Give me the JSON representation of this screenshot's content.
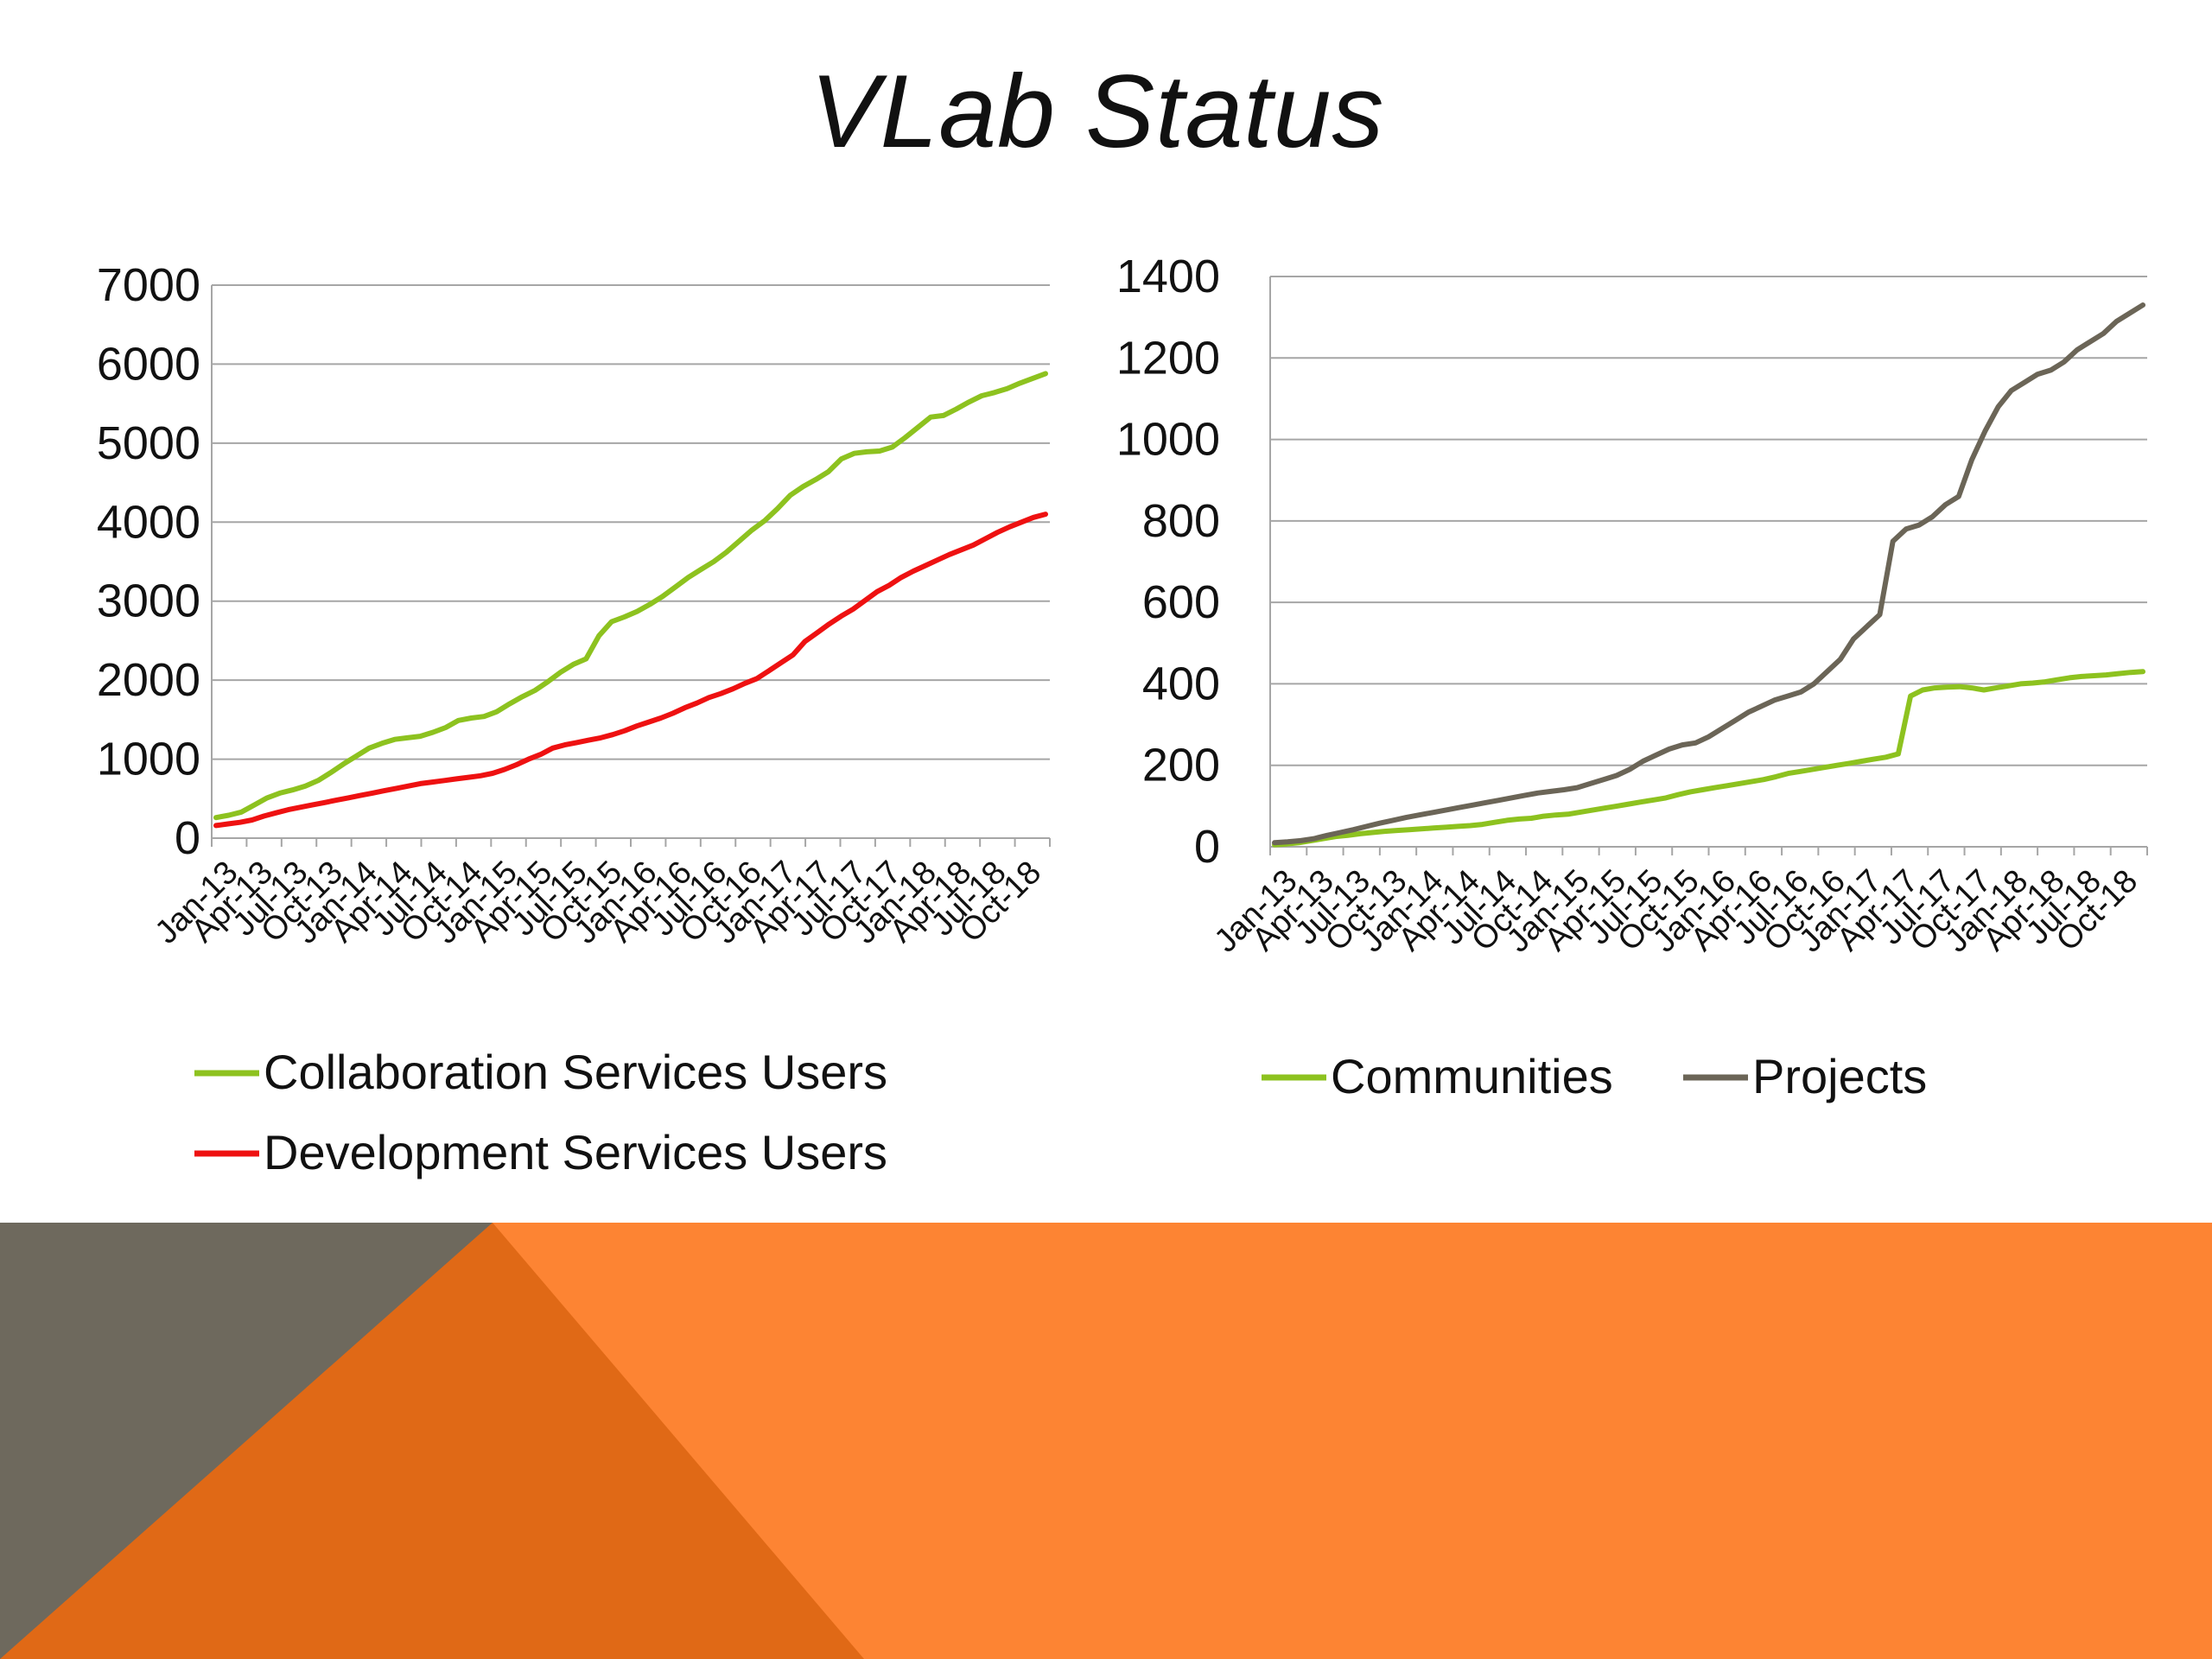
{
  "slide": {
    "title": "VLab Status"
  },
  "colors": {
    "collab_green": "#8dc21f",
    "dev_red": "#ee1111",
    "projects_gray": "#6b6557",
    "gridline": "#a6a6a6",
    "footer_orange": "#fd8433",
    "footer_dark_orange": "#e06916",
    "footer_gray": "#6e695d"
  },
  "chart_data": [
    {
      "type": "line",
      "x_tick_labels": [
        "Jan-13",
        "Apr-13",
        "Jul-13",
        "Oct-13",
        "Jan-14",
        "Apr-14",
        "Jul-14",
        "Oct-14",
        "Jan-15",
        "Apr-15",
        "Jul-15",
        "Oct-15",
        "Jan-16",
        "Apr-16",
        "Jul-16",
        "Oct-16",
        "Jan-17",
        "Apr-17",
        "Jul-17",
        "Oct-17",
        "Jan-18",
        "Apr-18",
        "Jul-18",
        "Oct-18"
      ],
      "ylim": [
        0,
        7000
      ],
      "y_ticks": [
        0,
        1000,
        2000,
        3000,
        4000,
        5000,
        6000,
        7000
      ],
      "grid": true,
      "legend_position": "bottom",
      "series": [
        {
          "name": "Collaboration Services Users",
          "color": "#8dc21f",
          "values": [
            260,
            290,
            330,
            420,
            510,
            570,
            610,
            660,
            730,
            830,
            940,
            1040,
            1140,
            1200,
            1250,
            1270,
            1290,
            1340,
            1400,
            1490,
            1520,
            1540,
            1600,
            1700,
            1790,
            1870,
            1980,
            2100,
            2200,
            2270,
            2560,
            2740,
            2800,
            2870,
            2960,
            3060,
            3180,
            3300,
            3400,
            3500,
            3620,
            3760,
            3900,
            4020,
            4170,
            4340,
            4450,
            4540,
            4640,
            4800,
            4870,
            4890,
            4900,
            4950,
            5070,
            5200,
            5330,
            5350,
            5430,
            5520,
            5600,
            5640,
            5690,
            5760,
            5820,
            5880
          ]
        },
        {
          "name": "Development Services Users",
          "color": "#ee1111",
          "values": [
            160,
            180,
            200,
            230,
            280,
            320,
            360,
            390,
            420,
            450,
            480,
            510,
            540,
            570,
            600,
            630,
            660,
            690,
            710,
            730,
            750,
            770,
            790,
            820,
            870,
            930,
            1000,
            1060,
            1140,
            1180,
            1210,
            1240,
            1270,
            1310,
            1360,
            1420,
            1470,
            1520,
            1580,
            1650,
            1710,
            1780,
            1830,
            1890,
            1960,
            2020,
            2120,
            2220,
            2320,
            2490,
            2600,
            2710,
            2810,
            2900,
            3010,
            3120,
            3200,
            3300,
            3380,
            3450,
            3520,
            3590,
            3650,
            3710,
            3790,
            3870,
            3940,
            4000,
            4060,
            4100
          ]
        }
      ]
    },
    {
      "type": "line",
      "x_tick_labels": [
        "Jan-13",
        "Apr-13",
        "Jul-13",
        "Oct-13",
        "Jan-14",
        "Apr-14",
        "Jul-14",
        "Oct-14",
        "Jan-15",
        "Apr-15",
        "Jul-15",
        "Oct-15",
        "Jan-16",
        "Apr-16",
        "Jul-16",
        "Oct-16",
        "Jan-17",
        "Apr-17",
        "Jul-17",
        "Oct-17",
        "Jan-18",
        "Apr-18",
        "Jul-18",
        "Oct-18"
      ],
      "ylim": [
        0,
        1400
      ],
      "y_ticks": [
        0,
        200,
        400,
        600,
        800,
        1000,
        1200,
        1400
      ],
      "grid": true,
      "legend_position": "bottom",
      "series": [
        {
          "name": "Communities",
          "color": "#8dc21f",
          "values": [
            5,
            7,
            10,
            15,
            20,
            25,
            28,
            32,
            35,
            38,
            40,
            42,
            44,
            46,
            48,
            50,
            52,
            55,
            60,
            65,
            68,
            70,
            75,
            78,
            80,
            85,
            90,
            95,
            100,
            105,
            110,
            115,
            120,
            128,
            135,
            140,
            145,
            150,
            155,
            160,
            165,
            172,
            180,
            185,
            190,
            195,
            200,
            205,
            210,
            215,
            220,
            228,
            370,
            385,
            390,
            392,
            393,
            390,
            385,
            390,
            395,
            400,
            402,
            405,
            410,
            415,
            418,
            420,
            422,
            425,
            428,
            430
          ]
        },
        {
          "name": "Projects",
          "color": "#6b6557",
          "values": [
            10,
            12,
            15,
            20,
            28,
            35,
            42,
            50,
            58,
            65,
            72,
            78,
            84,
            90,
            96,
            102,
            108,
            114,
            120,
            126,
            132,
            136,
            140,
            145,
            155,
            165,
            175,
            190,
            210,
            225,
            240,
            250,
            255,
            270,
            290,
            310,
            330,
            345,
            360,
            370,
            380,
            400,
            430,
            460,
            510,
            540,
            570,
            750,
            780,
            790,
            810,
            840,
            860,
            950,
            1020,
            1080,
            1120,
            1140,
            1160,
            1170,
            1190,
            1220,
            1240,
            1260,
            1290,
            1310,
            1330
          ]
        }
      ]
    }
  ]
}
